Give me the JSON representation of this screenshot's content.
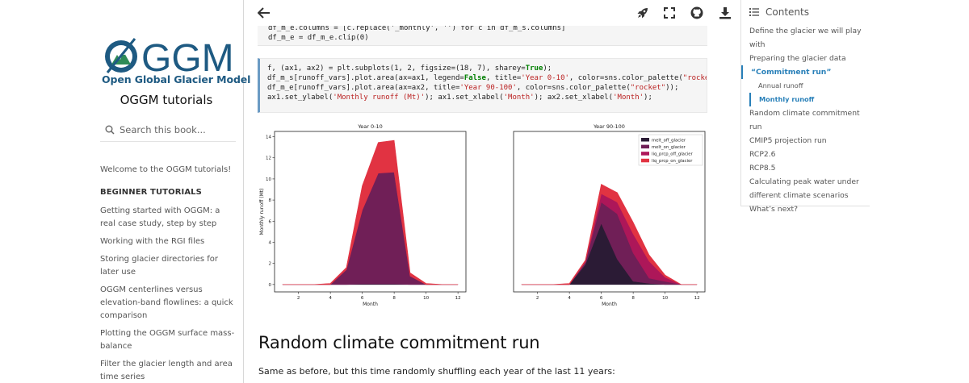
{
  "sidebar": {
    "logo_text": "Open Global Glacier Model",
    "logo_word": "GGM",
    "site_title": "OGGM tutorials",
    "search_placeholder": "Search this book...",
    "welcome": "Welcome to the OGGM tutorials!",
    "section": "BEGINNER TUTORIALS",
    "items": [
      "Getting started with OGGM: a real case study, step by step",
      "Working with the RGI files",
      "Storing glacier directories for later use",
      "OGGM centerlines versus elevation-band flowlines: a quick comparison",
      "Plotting the OGGM surface mass-balance",
      "Filter the glacier length and area time series"
    ]
  },
  "topbar": {
    "back_icon": "arrow-left-icon",
    "launch_icon": "rocket-icon",
    "fullscreen_icon": "fullscreen-icon",
    "github_icon": "github-icon",
    "download_icon": "download-icon"
  },
  "code1": {
    "line1": "df_m_e.columns = [c.replace('_monthly', '') for c in df_m_s.columns]",
    "line2": "df_m_e = df_m_e.clip(0)"
  },
  "code2": {
    "line1a": "f, (ax1, ax2) = plt.subplots(1, 2, figsize=(18, 7), sharey=",
    "line1b": "True",
    "line1c": ");",
    "line2a": "df_m_s[runoff_vars].plot.area(ax=ax1, legend=",
    "line2b": "False",
    "line2c": ", title=",
    "line2d": "'Year 0-10'",
    "line2e": ", color=sns.color_palette(",
    "line2f": "\"rocket",
    "line3a": "df_m_e[runoff_vars].plot.area(ax=ax2, title=",
    "line3b": "'Year 90-100'",
    "line3c": ", color=sns.color_palette(",
    "line3d": "\"rocket\"",
    "line3e": "));",
    "line4a": "ax1.set_ylabel(",
    "line4b": "'Monthly runoff (Mt)'",
    "line4c": "); ax1.set_xlabel(",
    "line4d": "'Month'",
    "line4e": "); ax2.set_xlabel(",
    "line4f": "'Month'",
    "line4g": ");"
  },
  "chart_data": [
    {
      "type": "area",
      "title": "Year 0-10",
      "xlabel": "Month",
      "ylabel": "Monthly runoff (Mt)",
      "xlim": [
        0.5,
        12.5
      ],
      "ylim": [
        -0.7,
        14.5
      ],
      "xticks": [
        2,
        4,
        6,
        8,
        10,
        12
      ],
      "yticks": [
        0,
        2,
        4,
        6,
        8,
        10,
        12,
        14
      ],
      "x": [
        1,
        2,
        3,
        4,
        5,
        6,
        7,
        8,
        9,
        10,
        11,
        12
      ],
      "series": [
        {
          "name": "melt_off_glacier",
          "color": "#2b1b35",
          "values": [
            0,
            0,
            0,
            0,
            0,
            0.05,
            0.05,
            0.05,
            0,
            0,
            0,
            0
          ]
        },
        {
          "name": "melt_on_glacier",
          "color": "#701f57",
          "values": [
            0,
            0,
            0,
            0,
            1.4,
            7.0,
            10.5,
            10.6,
            0.8,
            0,
            0,
            0
          ]
        },
        {
          "name": "liq_prcp_off_glacier",
          "color": "#ad1759",
          "values": [
            0,
            0,
            0,
            0,
            0,
            0,
            0,
            0,
            0,
            0,
            0,
            0
          ]
        },
        {
          "name": "liq_prcp_on_glacier",
          "color": "#e13342",
          "values": [
            0,
            0,
            0,
            0.1,
            0.2,
            2.3,
            2.9,
            3.0,
            0.3,
            0.1,
            0,
            0
          ]
        }
      ]
    },
    {
      "type": "area",
      "title": "Year 90-100",
      "xlabel": "Month",
      "xlim": [
        0.5,
        12.5
      ],
      "ylim": [
        -0.7,
        14.5
      ],
      "xticks": [
        2,
        4,
        6,
        8,
        10,
        12
      ],
      "legend": "top-right",
      "x": [
        1,
        2,
        3,
        4,
        5,
        6,
        7,
        8,
        9,
        10,
        11,
        12
      ],
      "series": [
        {
          "name": "melt_off_glacier",
          "color": "#2b1b35",
          "values": [
            0,
            0,
            0,
            0,
            1.9,
            5.8,
            2.4,
            0.3,
            0.1,
            0,
            0,
            0
          ]
        },
        {
          "name": "melt_on_glacier",
          "color": "#701f57",
          "values": [
            0,
            0,
            0,
            0,
            0.2,
            2.0,
            4.3,
            2.7,
            0.5,
            0.3,
            0,
            0
          ]
        },
        {
          "name": "liq_prcp_off_glacier",
          "color": "#ad1759",
          "values": [
            0,
            0,
            0,
            0,
            0.05,
            0.8,
            1.1,
            1.8,
            1.6,
            0.4,
            0,
            0
          ]
        },
        {
          "name": "liq_prcp_on_glacier",
          "color": "#e13342",
          "values": [
            0,
            0,
            0,
            0.1,
            0.15,
            0.9,
            0.9,
            1.1,
            0.6,
            0.2,
            0,
            0
          ]
        }
      ]
    }
  ],
  "main": {
    "heading": "Random climate commitment run",
    "paragraph": "Same as before, but this time randomly shuffling each year of the last 11 years:"
  },
  "toc": {
    "title": "Contents",
    "items": [
      {
        "label": "Define the glacier we will play",
        "level": 1
      },
      {
        "label": "with",
        "level": 1
      },
      {
        "label": "Preparing the glacier data",
        "level": 1
      },
      {
        "label": "“Commitment run”",
        "level": 1,
        "active": true
      },
      {
        "label": "Annual runoff",
        "level": 2
      },
      {
        "label": "Monthly runoff",
        "level": 2,
        "active": true
      },
      {
        "label": "Random climate commitment run",
        "level": 1
      },
      {
        "label": "CMIP5 projection run",
        "level": 1
      },
      {
        "label": "RCP2.6",
        "level": 1
      },
      {
        "label": "RCP8.5",
        "level": 1
      },
      {
        "label": "Calculating peak water under",
        "level": 1
      },
      {
        "label": "different climate scenarios",
        "level": 1
      },
      {
        "label": "What’s next?",
        "level": 1
      }
    ]
  }
}
